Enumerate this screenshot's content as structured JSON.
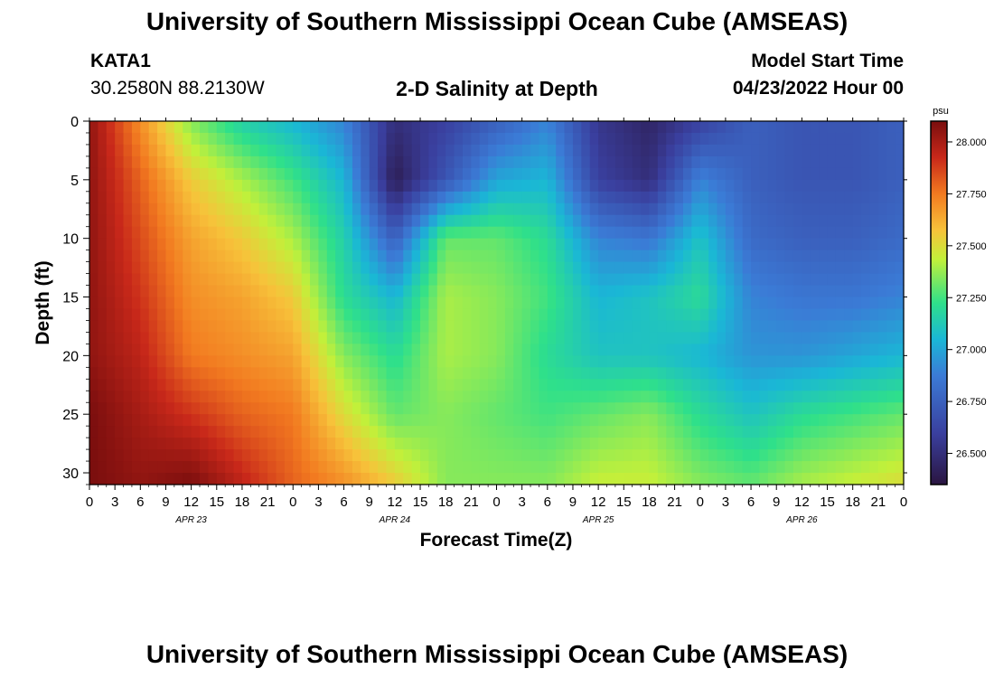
{
  "header": {
    "title": "University of Southern Mississippi Ocean Cube (AMSEAS)",
    "station": "KATA1",
    "coords": "30.2580N  88.2130W",
    "subtitle": "2-D Salinity at Depth",
    "model_label": "Model Start Time",
    "model_time": "04/23/2022 Hour 00"
  },
  "footer": {
    "title": "University of Southern Mississippi Ocean Cube (AMSEAS)"
  },
  "chart_data": {
    "type": "heatmap",
    "title": "2-D Salinity at Depth",
    "xlabel": "Forecast Time(Z)",
    "ylabel": "Depth (ft)",
    "xlim_hours": [
      0,
      96
    ],
    "ylim": [
      0,
      31
    ],
    "y_ticks": [
      0,
      5,
      10,
      15,
      20,
      25,
      30
    ],
    "x_tick_labels": [
      "0",
      "3",
      "6",
      "9",
      "12",
      "15",
      "18",
      "21",
      "0",
      "3",
      "6",
      "9",
      "12",
      "15",
      "18",
      "21",
      "0",
      "3",
      "6",
      "9",
      "12",
      "15",
      "18",
      "21",
      "0",
      "3",
      "6",
      "9",
      "12",
      "15",
      "18",
      "21",
      "0"
    ],
    "date_labels": [
      {
        "hour": 12,
        "label": "APR 23"
      },
      {
        "hour": 36,
        "label": "APR 24"
      },
      {
        "hour": 60,
        "label": "APR 25"
      },
      {
        "hour": 84,
        "label": "APR 26"
      }
    ],
    "colorbar": {
      "unit": "psu",
      "min": 26.35,
      "max": 28.1,
      "ticks": [
        26.5,
        26.75,
        27.0,
        27.25,
        27.5,
        27.75,
        28.0
      ],
      "tick_labels": [
        "26.500",
        "26.750",
        "27.000",
        "27.250",
        "27.500",
        "27.750",
        "28.000"
      ]
    },
    "depths_ft": [
      0,
      5,
      10,
      15,
      20,
      25,
      31
    ],
    "times_h": [
      0,
      6,
      12,
      18,
      24,
      30,
      36,
      42,
      48,
      54,
      60,
      66,
      72,
      78,
      84,
      90,
      96
    ],
    "salinity_psu": [
      [
        28.05,
        27.7,
        27.35,
        27.15,
        27.05,
        26.9,
        26.5,
        26.6,
        26.75,
        26.9,
        26.55,
        26.45,
        26.6,
        26.75,
        26.7,
        26.7,
        26.75
      ],
      [
        28.05,
        27.8,
        27.55,
        27.4,
        27.25,
        27.05,
        26.4,
        26.7,
        27.0,
        27.05,
        26.6,
        26.5,
        26.9,
        26.75,
        26.7,
        26.7,
        26.75
      ],
      [
        28.05,
        27.85,
        27.65,
        27.55,
        27.4,
        27.15,
        26.75,
        27.3,
        27.3,
        27.2,
        26.9,
        26.85,
        27.1,
        26.8,
        26.75,
        26.75,
        26.8
      ],
      [
        28.05,
        27.9,
        27.7,
        27.65,
        27.55,
        27.2,
        27.05,
        27.4,
        27.35,
        27.25,
        27.05,
        27.1,
        27.2,
        26.9,
        26.85,
        26.85,
        26.9
      ],
      [
        28.05,
        27.95,
        27.75,
        27.7,
        27.65,
        27.35,
        27.2,
        27.4,
        27.35,
        27.2,
        27.1,
        27.1,
        27.05,
        26.95,
        26.95,
        27.0,
        27.05
      ],
      [
        28.1,
        28.0,
        27.9,
        27.8,
        27.75,
        27.5,
        27.3,
        27.35,
        27.3,
        27.25,
        27.3,
        27.35,
        27.2,
        27.1,
        27.2,
        27.25,
        27.3
      ],
      [
        28.1,
        28.05,
        28.1,
        27.95,
        27.8,
        27.7,
        27.55,
        27.35,
        27.35,
        27.35,
        27.45,
        27.45,
        27.35,
        27.3,
        27.4,
        27.45,
        27.5
      ]
    ]
  }
}
